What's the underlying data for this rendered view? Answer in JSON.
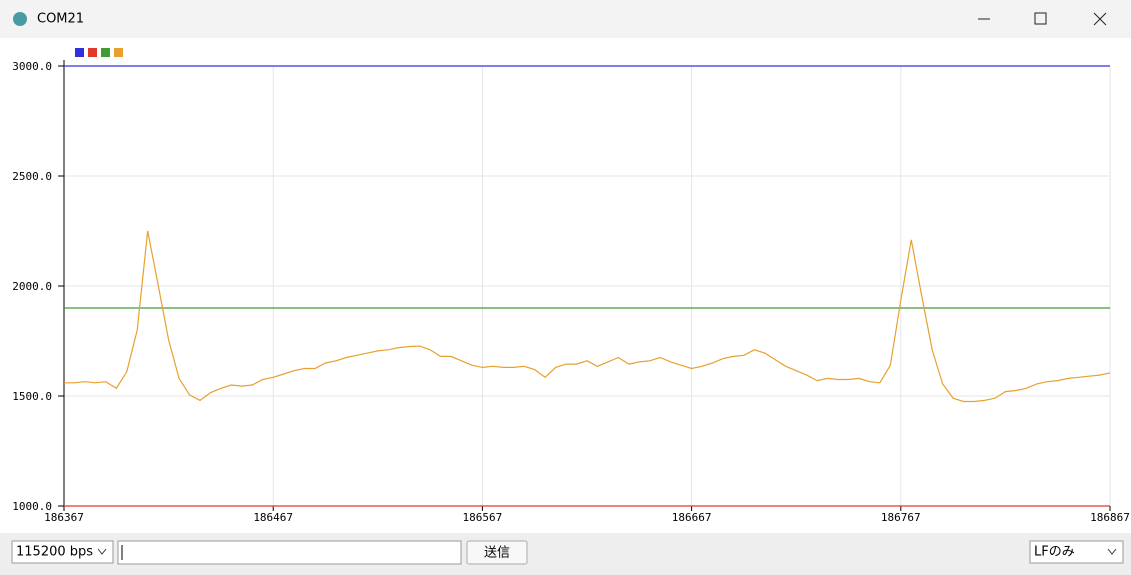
{
  "window": {
    "title": "COM21",
    "baud": "115200 bps",
    "send_button": "送信",
    "line_ending": "LFのみ"
  },
  "chart_data": {
    "type": "line",
    "x": [
      186367,
      186372,
      186377,
      186382,
      186387,
      186392,
      186397,
      186402,
      186407,
      186412,
      186417,
      186422,
      186427,
      186432,
      186437,
      186442,
      186447,
      186452,
      186457,
      186462,
      186467,
      186472,
      186477,
      186482,
      186487,
      186492,
      186497,
      186502,
      186507,
      186512,
      186517,
      186522,
      186527,
      186532,
      186537,
      186542,
      186547,
      186552,
      186557,
      186562,
      186567,
      186572,
      186577,
      186582,
      186587,
      186592,
      186597,
      186602,
      186607,
      186612,
      186617,
      186622,
      186627,
      186632,
      186637,
      186642,
      186647,
      186652,
      186657,
      186662,
      186667,
      186672,
      186677,
      186682,
      186687,
      186692,
      186697,
      186702,
      186707,
      186712,
      186717,
      186722,
      186727,
      186732,
      186737,
      186742,
      186747,
      186752,
      186757,
      186762,
      186767,
      186772,
      186777,
      186782,
      186787,
      186792,
      186797,
      186802,
      186807,
      186812,
      186817,
      186822,
      186827,
      186832,
      186837,
      186842,
      186847,
      186852,
      186857,
      186862,
      186867
    ],
    "series": [
      {
        "color": "#3030e0",
        "values": [
          3000,
          3000,
          3000,
          3000,
          3000,
          3000,
          3000,
          3000,
          3000,
          3000,
          3000,
          3000,
          3000,
          3000,
          3000,
          3000,
          3000,
          3000,
          3000,
          3000,
          3000,
          3000,
          3000,
          3000,
          3000,
          3000,
          3000,
          3000,
          3000,
          3000,
          3000,
          3000,
          3000,
          3000,
          3000,
          3000,
          3000,
          3000,
          3000,
          3000,
          3000,
          3000,
          3000,
          3000,
          3000,
          3000,
          3000,
          3000,
          3000,
          3000,
          3000,
          3000,
          3000,
          3000,
          3000,
          3000,
          3000,
          3000,
          3000,
          3000,
          3000,
          3000,
          3000,
          3000,
          3000,
          3000,
          3000,
          3000,
          3000,
          3000,
          3000,
          3000,
          3000,
          3000,
          3000,
          3000,
          3000,
          3000,
          3000,
          3000,
          3000,
          3000,
          3000,
          3000,
          3000,
          3000,
          3000,
          3000,
          3000,
          3000,
          3000,
          3000,
          3000,
          3000,
          3000,
          3000,
          3000,
          3000,
          3000,
          3000,
          3000
        ]
      },
      {
        "color": "#e03a2a",
        "values": [
          1000,
          1000,
          1000,
          1000,
          1000,
          1000,
          1000,
          1000,
          1000,
          1000,
          1000,
          1000,
          1000,
          1000,
          1000,
          1000,
          1000,
          1000,
          1000,
          1000,
          1000,
          1000,
          1000,
          1000,
          1000,
          1000,
          1000,
          1000,
          1000,
          1000,
          1000,
          1000,
          1000,
          1000,
          1000,
          1000,
          1000,
          1000,
          1000,
          1000,
          1000,
          1000,
          1000,
          1000,
          1000,
          1000,
          1000,
          1000,
          1000,
          1000,
          1000,
          1000,
          1000,
          1000,
          1000,
          1000,
          1000,
          1000,
          1000,
          1000,
          1000,
          1000,
          1000,
          1000,
          1000,
          1000,
          1000,
          1000,
          1000,
          1000,
          1000,
          1000,
          1000,
          1000,
          1000,
          1000,
          1000,
          1000,
          1000,
          1000,
          1000,
          1000,
          1000,
          1000,
          1000,
          1000,
          1000,
          1000,
          1000,
          1000,
          1000,
          1000,
          1000,
          1000,
          1000,
          1000,
          1000,
          1000,
          1000,
          1000,
          1000
        ]
      },
      {
        "color": "#449a33",
        "values": [
          1900,
          1900,
          1900,
          1900,
          1900,
          1900,
          1900,
          1900,
          1900,
          1900,
          1900,
          1900,
          1900,
          1900,
          1900,
          1900,
          1900,
          1900,
          1900,
          1900,
          1900,
          1900,
          1900,
          1900,
          1900,
          1900,
          1900,
          1900,
          1900,
          1900,
          1900,
          1900,
          1900,
          1900,
          1900,
          1900,
          1900,
          1900,
          1900,
          1900,
          1900,
          1900,
          1900,
          1900,
          1900,
          1900,
          1900,
          1900,
          1900,
          1900,
          1900,
          1900,
          1900,
          1900,
          1900,
          1900,
          1900,
          1900,
          1900,
          1900,
          1900,
          1900,
          1900,
          1900,
          1900,
          1900,
          1900,
          1900,
          1900,
          1900,
          1900,
          1900,
          1900,
          1900,
          1900,
          1900,
          1900,
          1900,
          1900,
          1900,
          1900,
          1900,
          1900,
          1900,
          1900,
          1900,
          1900,
          1900,
          1900,
          1900,
          1900,
          1900,
          1900,
          1900,
          1900,
          1900,
          1900,
          1900,
          1900,
          1900,
          1900
        ]
      },
      {
        "color": "#e8a030",
        "values": [
          1560,
          1560,
          1565,
          1560,
          1565,
          1535,
          1610,
          1800,
          2250,
          2005,
          1755,
          1580,
          1505,
          1480,
          1515,
          1535,
          1550,
          1545,
          1550,
          1575,
          1585,
          1600,
          1615,
          1625,
          1625,
          1650,
          1660,
          1675,
          1685,
          1695,
          1705,
          1710,
          1720,
          1725,
          1727,
          1710,
          1680,
          1680,
          1660,
          1640,
          1630,
          1635,
          1630,
          1630,
          1635,
          1620,
          1585,
          1630,
          1645,
          1645,
          1660,
          1635,
          1655,
          1675,
          1645,
          1655,
          1660,
          1675,
          1655,
          1640,
          1625,
          1635,
          1650,
          1670,
          1680,
          1685,
          1710,
          1695,
          1665,
          1635,
          1615,
          1595,
          1570,
          1580,
          1575,
          1575,
          1580,
          1565,
          1560,
          1640,
          1935,
          2210,
          1955,
          1710,
          1555,
          1490,
          1475,
          1475,
          1480,
          1490,
          1520,
          1525,
          1535,
          1555,
          1565,
          1570,
          1580,
          1585,
          1590,
          1595,
          1605
        ]
      }
    ],
    "xlim": [
      186367,
      186867
    ],
    "xticks": [
      186367,
      186467,
      186567,
      186667,
      186767,
      186867
    ],
    "ylim": [
      1000,
      3000
    ],
    "yticks": [
      {
        "value": 1000,
        "label": "1000.0"
      },
      {
        "value": 1500,
        "label": "1500.0"
      },
      {
        "value": 2000,
        "label": "2000.0"
      },
      {
        "value": 2500,
        "label": "2500.0"
      },
      {
        "value": 3000,
        "label": "3000.0"
      }
    ],
    "grid": true
  }
}
